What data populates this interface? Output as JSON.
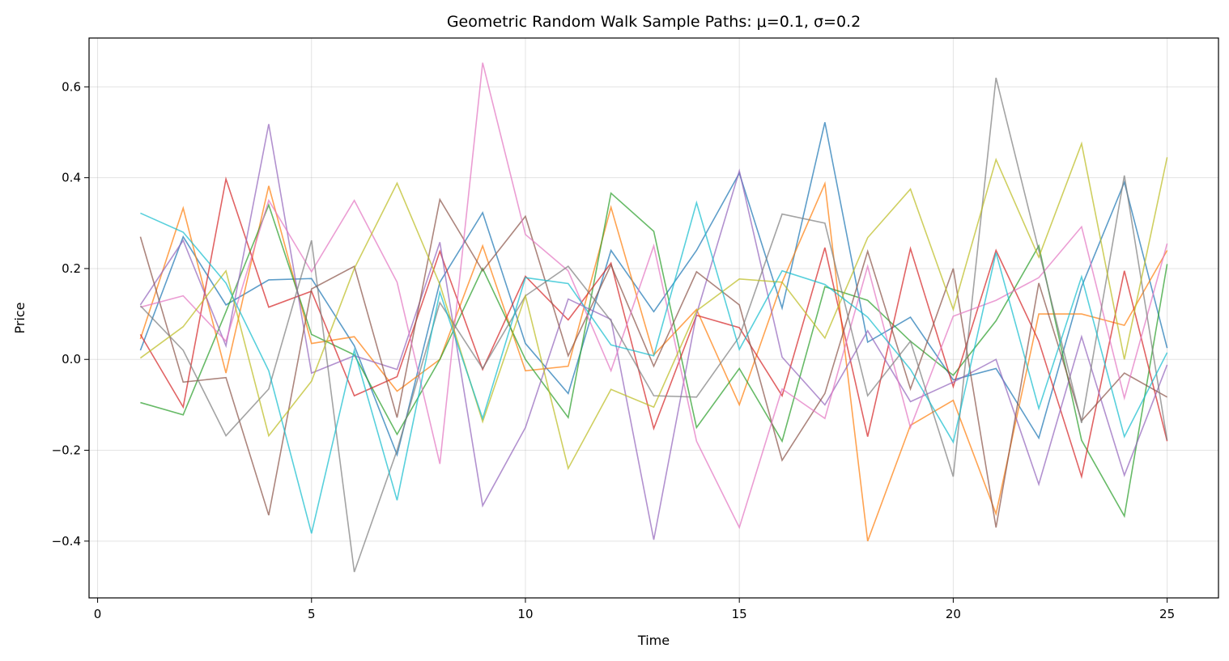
{
  "chart_data": {
    "type": "line",
    "title": "Geometric Random Walk Sample Paths: μ=0.1, σ=0.2",
    "xlabel": "Time",
    "ylabel": "Price",
    "xlim": [
      -0.2,
      26.2
    ],
    "ylim": [
      -0.525,
      0.7075
    ],
    "xticks": [
      0,
      5,
      10,
      15,
      20,
      25
    ],
    "xtick_labels": [
      "0",
      "5",
      "10",
      "15",
      "20",
      "25"
    ],
    "yticks": [
      -0.4,
      -0.2,
      0.0,
      0.2,
      0.4,
      0.6
    ],
    "ytick_labels": [
      "−0.4",
      "−0.2",
      "0.0",
      "0.2",
      "0.4",
      "0.6"
    ],
    "grid": true,
    "x": [
      1,
      2,
      3,
      4,
      5,
      6,
      7,
      8,
      9,
      10,
      11,
      12,
      13,
      14,
      15,
      16,
      17,
      18,
      19,
      20,
      21,
      22,
      23,
      24,
      25
    ],
    "series": [
      {
        "color": "#1f77b4",
        "values": [
          0.02,
          0.27,
          0.12,
          0.175,
          0.178,
          0.03,
          -0.21,
          0.17,
          0.323,
          0.035,
          -0.075,
          0.24,
          0.105,
          0.24,
          0.41,
          0.113,
          0.522,
          0.038,
          0.093,
          -0.045,
          -0.02,
          -0.173,
          0.16,
          0.39,
          0.025
        ]
      },
      {
        "color": "#ff7f0e",
        "values": [
          0.045,
          0.333,
          -0.03,
          0.382,
          0.035,
          0.05,
          -0.07,
          0.0,
          0.25,
          -0.025,
          -0.015,
          0.335,
          0.01,
          0.11,
          -0.1,
          0.17,
          0.387,
          -0.4,
          -0.145,
          -0.09,
          -0.34,
          0.1,
          0.1,
          0.075,
          0.24
        ]
      },
      {
        "color": "#2ca02c",
        "values": [
          -0.095,
          -0.122,
          0.105,
          0.34,
          0.055,
          0.01,
          -0.165,
          0.0,
          0.2,
          0.0,
          -0.128,
          0.366,
          0.282,
          -0.15,
          -0.02,
          -0.18,
          0.16,
          0.13,
          0.04,
          -0.035,
          0.085,
          0.25,
          -0.178,
          -0.345,
          0.21
        ]
      },
      {
        "color": "#d62728",
        "values": [
          0.055,
          -0.105,
          0.397,
          0.115,
          0.15,
          -0.08,
          -0.038,
          0.238,
          -0.022,
          0.183,
          0.087,
          0.212,
          -0.152,
          0.097,
          0.07,
          -0.08,
          0.246,
          -0.17,
          0.244,
          -0.06,
          0.24,
          0.04,
          -0.258,
          0.195,
          -0.18
        ]
      },
      {
        "color": "#9467bd",
        "values": [
          0.12,
          0.262,
          0.03,
          0.518,
          -0.03,
          0.008,
          -0.022,
          0.258,
          -0.322,
          -0.15,
          0.133,
          0.088,
          -0.397,
          0.1,
          0.415,
          0.005,
          -0.1,
          0.063,
          -0.093,
          -0.05,
          0.0,
          -0.275,
          0.05,
          -0.255,
          -0.012
        ]
      },
      {
        "color": "#8c564b",
        "values": [
          0.27,
          -0.05,
          -0.04,
          -0.343,
          0.155,
          0.205,
          -0.128,
          0.352,
          0.195,
          0.315,
          0.008,
          0.208,
          -0.015,
          0.193,
          0.12,
          -0.222,
          -0.075,
          0.238,
          -0.065,
          0.2,
          -0.37,
          0.168,
          -0.135,
          -0.03,
          -0.083
        ]
      },
      {
        "color": "#e377c2",
        "values": [
          0.115,
          0.14,
          0.04,
          0.35,
          0.193,
          0.35,
          0.17,
          -0.23,
          0.653,
          0.275,
          0.195,
          -0.025,
          0.25,
          -0.18,
          -0.37,
          -0.065,
          -0.13,
          0.205,
          -0.15,
          0.095,
          0.13,
          0.18,
          0.292,
          -0.085,
          0.255
        ]
      },
      {
        "color": "#7f7f7f",
        "values": [
          0.118,
          0.02,
          -0.168,
          -0.065,
          0.262,
          -0.468,
          -0.2,
          0.125,
          -0.02,
          0.14,
          0.205,
          0.085,
          -0.08,
          -0.083,
          0.05,
          0.32,
          0.3,
          -0.08,
          0.04,
          -0.258,
          0.62,
          0.24,
          -0.14,
          0.405,
          -0.178
        ]
      },
      {
        "color": "#bcbd22",
        "values": [
          0.003,
          0.072,
          0.195,
          -0.168,
          -0.048,
          0.2,
          0.388,
          0.165,
          -0.137,
          0.14,
          -0.24,
          -0.066,
          -0.105,
          0.107,
          0.177,
          0.17,
          0.047,
          0.268,
          0.375,
          0.11,
          0.44,
          0.225,
          0.475,
          0.0,
          0.445
        ]
      },
      {
        "color": "#17becf",
        "values": [
          0.322,
          0.28,
          0.168,
          -0.025,
          -0.383,
          0.02,
          -0.31,
          0.148,
          -0.13,
          0.18,
          0.167,
          0.032,
          0.008,
          0.345,
          0.022,
          0.195,
          0.165,
          0.093,
          -0.022,
          -0.182,
          0.235,
          -0.108,
          0.182,
          -0.17,
          0.015
        ]
      }
    ]
  }
}
